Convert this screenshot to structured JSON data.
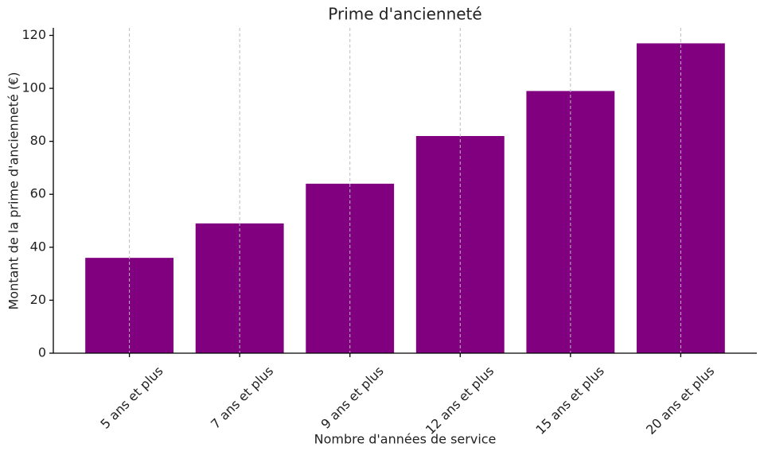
{
  "chart_data": {
    "type": "bar",
    "title": "Prime d'ancienneté",
    "x_label": "Nombre d'années de service",
    "y_label": "Montant de la prime d'ancienneté (€)",
    "categories": [
      "5 ans et plus",
      "7 ans et plus",
      "9 ans et plus",
      "12 ans et plus",
      "15 ans et plus",
      "20 ans et plus"
    ],
    "values": [
      36,
      49,
      64,
      82,
      99,
      117
    ],
    "color": "#800080",
    "ylim": [
      0,
      122.85
    ],
    "yticks": [
      0,
      20,
      40,
      60,
      80,
      100,
      120
    ],
    "grid": "x"
  }
}
